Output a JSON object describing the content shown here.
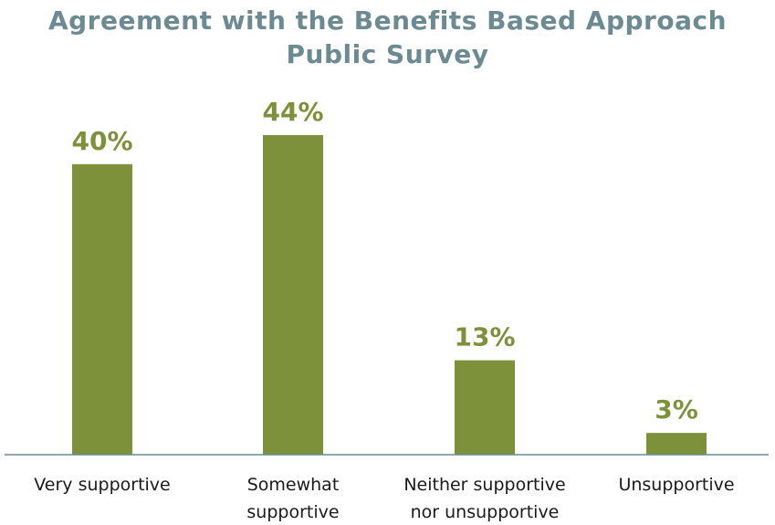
{
  "chart_data": {
    "type": "bar",
    "title": "Agreement with the Benefits Based Approach",
    "subtitle": "Public Survey",
    "categories": [
      [
        "Very supportive"
      ],
      [
        "Somewhat",
        "supportive"
      ],
      [
        "Neither supportive",
        "nor unsupportive"
      ],
      [
        "Unsupportive"
      ]
    ],
    "values": [
      40,
      44,
      13,
      3
    ],
    "data_labels": [
      "40%",
      "44%",
      "13%",
      "3%"
    ],
    "unit": "%",
    "ylim": [
      0,
      44
    ],
    "grid": false,
    "legend": "none",
    "colors": {
      "bar": "#7d913b",
      "title": "#6b8a91",
      "axis": "#6b8a91",
      "label": "#1a1a1a"
    }
  }
}
